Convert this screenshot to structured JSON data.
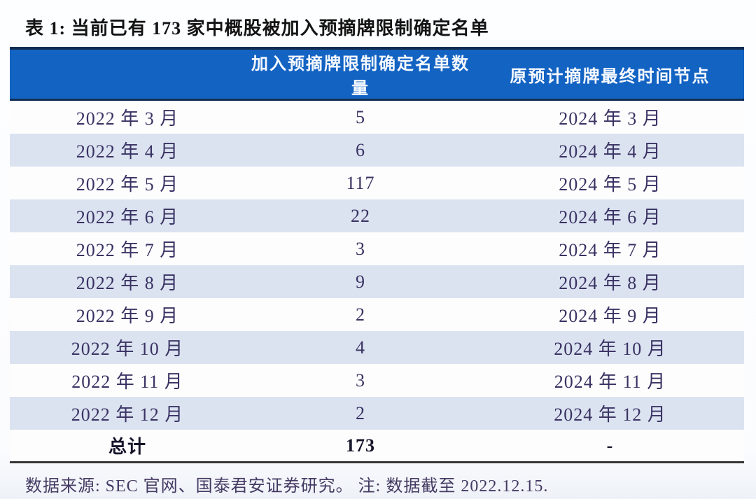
{
  "table": {
    "title": "表 1: 当前已有 173 家中概股被加入预摘牌限制确定名单",
    "header": {
      "col1": "",
      "col2": "加入预摘牌限制确定名单数量",
      "col3": "原预计摘牌最终时间节点"
    },
    "rows": [
      {
        "month": "2022 年 3 月",
        "count": "5",
        "deadline": "2024 年 3 月"
      },
      {
        "month": "2022 年 4 月",
        "count": "6",
        "deadline": "2024 年 4 月"
      },
      {
        "month": "2022 年 5 月",
        "count": "117",
        "deadline": "2024 年 5 月"
      },
      {
        "month": "2022 年 6 月",
        "count": "22",
        "deadline": "2024 年 6 月"
      },
      {
        "month": "2022 年 7 月",
        "count": "3",
        "deadline": "2024 年 7 月"
      },
      {
        "month": "2022 年 8 月",
        "count": "9",
        "deadline": "2024 年 8 月"
      },
      {
        "month": "2022 年 9 月",
        "count": "2",
        "deadline": "2024 年 9 月"
      },
      {
        "month": "2022 年 10 月",
        "count": "4",
        "deadline": "2024 年 10 月"
      },
      {
        "month": "2022 年 11 月",
        "count": "3",
        "deadline": "2024 年 11 月"
      },
      {
        "month": "2022 年 12 月",
        "count": "2",
        "deadline": "2024 年 12 月"
      }
    ],
    "total": {
      "label": "总计",
      "count": "173",
      "deadline": "-"
    },
    "footer": "数据来源: SEC 官网、国泰君安证券研究。 注: 数据截至 2022.12.15."
  },
  "colors": {
    "header_bg": "#1363c3",
    "header_border": "#132e52",
    "row_alt_bg": "#dbe3f1",
    "row_bg": "#fdfdfe",
    "body_text": "#3a3263",
    "title_text": "#141414",
    "footer_rule": "#373737"
  },
  "chart_data": {
    "type": "table",
    "title": "表 1: 当前已有 173 家中概股被加入预摘牌限制确定名单",
    "columns": [
      "",
      "加入预摘牌限制确定名单数量",
      "原预计摘牌最终时间节点"
    ],
    "rows": [
      [
        "2022 年 3 月",
        5,
        "2024 年 3 月"
      ],
      [
        "2022 年 4 月",
        6,
        "2024 年 4 月"
      ],
      [
        "2022 年 5 月",
        117,
        "2024 年 5 月"
      ],
      [
        "2022 年 6 月",
        22,
        "2024 年 6 月"
      ],
      [
        "2022 年 7 月",
        3,
        "2024 年 7 月"
      ],
      [
        "2022 年 8 月",
        9,
        "2024 年 8 月"
      ],
      [
        "2022 年 9 月",
        2,
        "2024 年 9 月"
      ],
      [
        "2022 年 10 月",
        4,
        "2024 年 10 月"
      ],
      [
        "2022 年 11 月",
        3,
        "2024 年 11 月"
      ],
      [
        "2022 年 12 月",
        2,
        "2024 年 12 月"
      ]
    ],
    "total_row": [
      "总计",
      173,
      "-"
    ],
    "note": "数据来源: SEC 官网、国泰君安证券研究。 注: 数据截至 2022.12.15.",
    "layout_hints": {
      "zebra_striping": true,
      "header_bg": "#1363c3",
      "grid": "off"
    }
  }
}
